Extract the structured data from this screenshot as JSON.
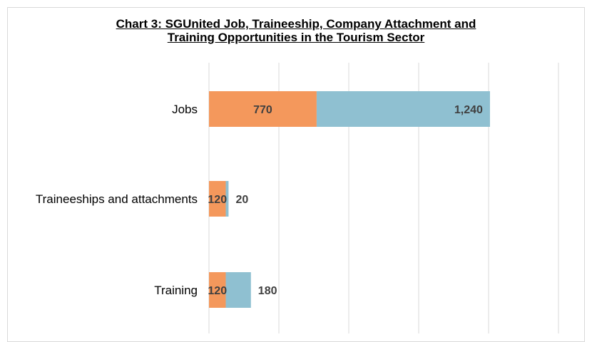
{
  "chart_data": {
    "type": "bar",
    "orientation": "horizontal",
    "stacked": true,
    "title_line1": "Chart 3: SGUnited Job, Traineeship, Company Attachment and",
    "title_line2": "Training Opportunities in the Tourism Sector",
    "categories": [
      "Jobs",
      "Traineeships and attachments",
      "Training"
    ],
    "series": [
      {
        "values": [
          770,
          120,
          120
        ],
        "labels": [
          "770",
          "120",
          "120"
        ],
        "color": "#f4985c"
      },
      {
        "values": [
          1240,
          20,
          180
        ],
        "labels": [
          "1,240",
          "20",
          "180"
        ],
        "color": "#8fc0d1"
      }
    ],
    "xlim": [
      0,
      2500
    ],
    "grid": true,
    "gridline_color": "#d9d9d9"
  }
}
